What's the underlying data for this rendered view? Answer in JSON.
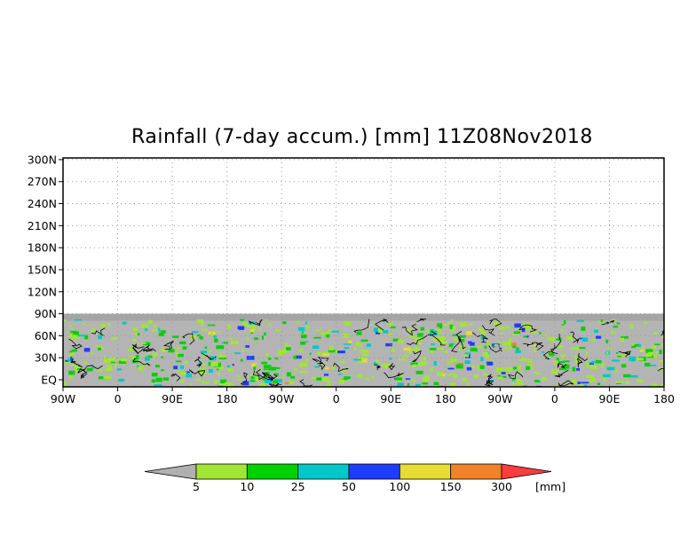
{
  "title": "Rainfall (7-day accum.) [mm] 11Z08Nov2018",
  "y_axis_labels": [
    "300N",
    "270N",
    "240N",
    "210N",
    "180N",
    "150N",
    "120N",
    "90N",
    "60N",
    "30N",
    "EQ"
  ],
  "x_axis_labels": [
    "90W",
    "0",
    "90E",
    "180",
    "90W",
    "0",
    "90E",
    "180",
    "90W",
    "0",
    "90E",
    "180"
  ],
  "colorbar": {
    "unit": "[mm]",
    "thresholds": [
      "5",
      "10",
      "25",
      "50",
      "100",
      "150",
      "300"
    ],
    "colors": [
      "#b0b0b0",
      "#a0e632",
      "#00d200",
      "#00c8c8",
      "#1e3cff",
      "#e6dc32",
      "#f08228",
      "#fa3c3c"
    ]
  },
  "map_colors": {
    "land_and_dry": "#b4b4b4",
    "polar_band": "#a5a5a5",
    "coastline": "#000000",
    "grid": "#9a9a9a"
  }
}
